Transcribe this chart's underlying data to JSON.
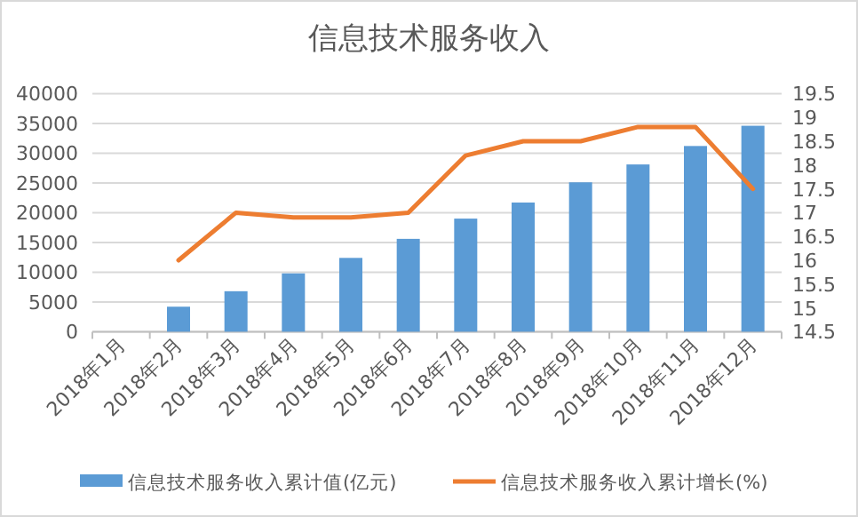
{
  "chart_data": {
    "type": "bar",
    "title": "信息技术服务收入",
    "categories": [
      "2018年1月",
      "2018年2月",
      "2018年3月",
      "2018年4月",
      "2018年5月",
      "2018年6月",
      "2018年7月",
      "2018年8月",
      "2018年9月",
      "2018年10月",
      "2018年11月",
      "2018年12月"
    ],
    "series": [
      {
        "name": "信息技术服务收入累计值(亿元)",
        "color": "#5b9bd5",
        "values": [
          null,
          4200,
          6800,
          9800,
          12400,
          15600,
          19000,
          21700,
          25100,
          28100,
          31200,
          34600
        ]
      },
      {
        "name": "信息技术服务收入累计增长(%)",
        "type": "line",
        "axis": "y2",
        "color": "#ed7d31",
        "marker": "none",
        "values": [
          null,
          16.0,
          17.0,
          16.9,
          16.9,
          17.0,
          18.2,
          18.5,
          18.5,
          18.8,
          18.8,
          17.5
        ]
      }
    ],
    "ylim": [
      0,
      40000
    ],
    "yticks": [
      0,
      5000,
      10000,
      15000,
      20000,
      25000,
      30000,
      35000,
      40000
    ],
    "y2lim": [
      14.5,
      19.5
    ],
    "y2ticks": [
      14.5,
      15,
      15.5,
      16,
      16.5,
      17,
      17.5,
      18,
      18.5,
      19,
      19.5
    ],
    "grid": "y",
    "legend": "bottom"
  }
}
